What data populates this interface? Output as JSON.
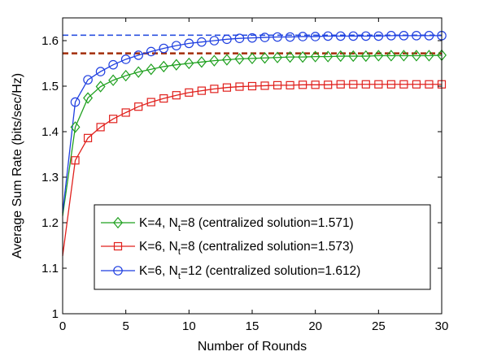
{
  "chart_data": {
    "type": "line",
    "xlabel": "Number of Rounds",
    "ylabel": "Average Sum Rate (bits/sec/Hz)",
    "xlim": [
      0,
      30
    ],
    "ylim": [
      1,
      1.65
    ],
    "xticks": [
      0,
      5,
      10,
      15,
      20,
      25,
      30
    ],
    "xtick_labels": [
      "0",
      "5",
      "10",
      "15",
      "20",
      "25",
      "30"
    ],
    "yticks": [
      1,
      1.1,
      1.2,
      1.3,
      1.4,
      1.5,
      1.6
    ],
    "ytick_labels": [
      "1",
      "1.1",
      "1.2",
      "1.3",
      "1.4",
      "1.5",
      "1.6"
    ],
    "grid": false,
    "legend_position": "bottom-right",
    "x": [
      0,
      1,
      2,
      3,
      4,
      5,
      6,
      7,
      8,
      9,
      10,
      11,
      12,
      13,
      14,
      15,
      16,
      17,
      18,
      19,
      20,
      21,
      22,
      23,
      24,
      25,
      26,
      27,
      28,
      29,
      30
    ],
    "series": [
      {
        "legend_prefix": "K=4, N",
        "legend_sub": "t",
        "legend_suffix": "=8 (centralized solution=1.571)",
        "color": "#1fa01f",
        "marker": "diamond",
        "reference": 1.571,
        "reference_color": "#b0401a",
        "values": [
          1.215,
          1.41,
          1.474,
          1.499,
          1.513,
          1.523,
          1.531,
          1.537,
          1.543,
          1.547,
          1.55,
          1.553,
          1.556,
          1.558,
          1.56,
          1.561,
          1.562,
          1.563,
          1.564,
          1.564,
          1.565,
          1.565,
          1.566,
          1.566,
          1.566,
          1.567,
          1.567,
          1.567,
          1.567,
          1.567,
          1.568
        ]
      },
      {
        "legend_prefix": "K=6, N",
        "legend_sub": "t",
        "legend_suffix": "=8 (centralized solution=1.573)",
        "color": "#e0201c",
        "marker": "square",
        "reference": 1.573,
        "reference_color": "#a03010",
        "values": [
          1.127,
          1.337,
          1.386,
          1.41,
          1.428,
          1.442,
          1.455,
          1.465,
          1.473,
          1.48,
          1.486,
          1.49,
          1.494,
          1.497,
          1.499,
          1.5,
          1.501,
          1.502,
          1.502,
          1.503,
          1.503,
          1.503,
          1.504,
          1.504,
          1.504,
          1.504,
          1.504,
          1.504,
          1.504,
          1.504,
          1.504
        ]
      },
      {
        "legend_prefix": "K=6, N",
        "legend_sub": "t",
        "legend_suffix": "=12 (centralized solution=1.612)",
        "color": "#1f3fe0",
        "marker": "circle",
        "reference": 1.612,
        "reference_color": "#2a50e0",
        "values": [
          1.222,
          1.465,
          1.514,
          1.532,
          1.547,
          1.559,
          1.568,
          1.576,
          1.583,
          1.589,
          1.594,
          1.597,
          1.6,
          1.603,
          1.605,
          1.606,
          1.607,
          1.608,
          1.608,
          1.609,
          1.609,
          1.61,
          1.61,
          1.61,
          1.61,
          1.61,
          1.611,
          1.611,
          1.611,
          1.611,
          1.611
        ]
      }
    ]
  }
}
